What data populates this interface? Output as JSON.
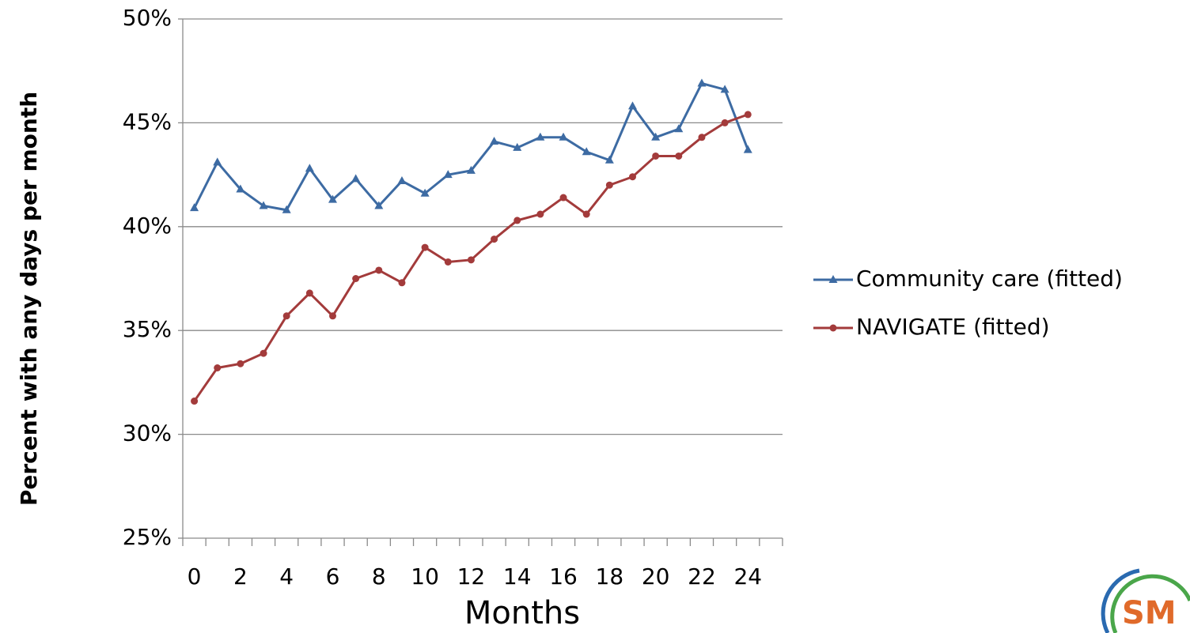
{
  "chart_data": {
    "type": "line",
    "x_label": "Months",
    "y_label": "Percent with any days per month",
    "categories": [
      "0",
      null,
      "2",
      null,
      "4",
      null,
      "6",
      null,
      "8",
      null,
      "10",
      null,
      "12",
      null,
      "14",
      null,
      "16",
      null,
      "18",
      null,
      "20",
      null,
      "22",
      null,
      "24",
      null
    ],
    "series": [
      {
        "name": "Community care (fitted)",
        "color": "#3d6ba3",
        "marker": "triangle",
        "values": [
          40.9,
          43.1,
          41.8,
          41.0,
          40.8,
          42.8,
          41.3,
          42.3,
          41.0,
          42.2,
          41.6,
          42.5,
          42.7,
          44.1,
          43.8,
          44.3,
          44.3,
          43.6,
          43.2,
          45.8,
          44.3,
          44.7,
          46.9,
          46.6,
          43.7,
          null
        ]
      },
      {
        "name": "NAVIGATE (fitted)",
        "color": "#a33b3b",
        "marker": "circle",
        "values": [
          31.6,
          33.2,
          33.4,
          33.9,
          35.7,
          36.8,
          35.7,
          37.5,
          37.9,
          37.3,
          39.0,
          38.3,
          38.4,
          39.4,
          40.3,
          40.6,
          41.4,
          40.6,
          42.0,
          42.4,
          43.4,
          43.4,
          44.3,
          45.0,
          45.4,
          null
        ]
      }
    ],
    "ylim": [
      25,
      50
    ],
    "yticks": [
      {
        "value": 25,
        "label": "25%"
      },
      {
        "value": 30,
        "label": "30%"
      },
      {
        "value": 35,
        "label": "35%"
      },
      {
        "value": 40,
        "label": "40%"
      },
      {
        "value": 45,
        "label": "45%"
      },
      {
        "value": 50,
        "label": "50%"
      }
    ],
    "grid": true,
    "legend": "right",
    "logo": "SM"
  }
}
